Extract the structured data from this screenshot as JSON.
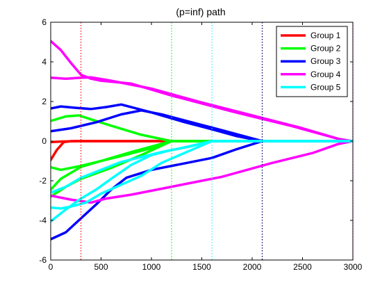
{
  "chart_data": {
    "type": "line",
    "title": "(p=inf) path",
    "xlabel": "",
    "ylabel": "",
    "xlim": [
      0,
      3000
    ],
    "ylim": [
      -6,
      6
    ],
    "xticks": [
      0,
      500,
      1000,
      1500,
      2000,
      2500,
      3000
    ],
    "yticks": [
      -6,
      -4,
      -2,
      0,
      2,
      4,
      6
    ],
    "grid": false,
    "legend_position": "top-right",
    "groups": [
      {
        "name": "Group 1",
        "color": "#ff0000",
        "breakpoint": 300
      },
      {
        "name": "Group 2",
        "color": "#00ff00",
        "breakpoint": 1200
      },
      {
        "name": "Group 3",
        "color": "#0000ff",
        "breakpoint": 2100
      },
      {
        "name": "Group 4",
        "color": "#ff00ff",
        "breakpoint": 3000
      },
      {
        "name": "Group 5",
        "color": "#00ffff",
        "breakpoint": 1600
      }
    ],
    "series": [
      {
        "group": 1,
        "points": [
          [
            0,
            -0.95
          ],
          [
            60,
            -0.45
          ],
          [
            130,
            -0.05
          ],
          [
            200,
            0.0
          ],
          [
            3000,
            0.0
          ]
        ]
      },
      {
        "group": 1,
        "points": [
          [
            0,
            -0.05
          ],
          [
            100,
            -0.02
          ],
          [
            250,
            0.0
          ],
          [
            3000,
            0.0
          ]
        ]
      },
      {
        "group": 2,
        "points": [
          [
            0,
            1.02
          ],
          [
            150,
            1.25
          ],
          [
            280,
            1.3
          ],
          [
            400,
            1.1
          ],
          [
            600,
            0.78
          ],
          [
            900,
            0.32
          ],
          [
            1200,
            0.0
          ],
          [
            3000,
            0.0
          ]
        ]
      },
      {
        "group": 2,
        "points": [
          [
            0,
            -1.32
          ],
          [
            100,
            -1.45
          ],
          [
            300,
            -1.25
          ],
          [
            700,
            -0.75
          ],
          [
            1000,
            -0.35
          ],
          [
            1200,
            0.0
          ],
          [
            3000,
            0.0
          ]
        ]
      },
      {
        "group": 2,
        "points": [
          [
            0,
            -2.45
          ],
          [
            100,
            -1.9
          ],
          [
            300,
            -1.3
          ],
          [
            500,
            -1.0
          ],
          [
            800,
            -0.55
          ],
          [
            1200,
            0.0
          ],
          [
            3000,
            0.0
          ]
        ]
      },
      {
        "group": 2,
        "points": [
          [
            0,
            -2.8
          ],
          [
            150,
            -2.3
          ],
          [
            300,
            -1.9
          ],
          [
            600,
            -1.35
          ],
          [
            900,
            -0.7
          ],
          [
            1200,
            0.0
          ],
          [
            3000,
            0.0
          ]
        ]
      },
      {
        "group": 3,
        "points": [
          [
            0,
            1.65
          ],
          [
            100,
            1.75
          ],
          [
            250,
            1.68
          ],
          [
            400,
            1.62
          ],
          [
            550,
            1.72
          ],
          [
            700,
            1.85
          ],
          [
            1000,
            1.45
          ],
          [
            1300,
            1.0
          ],
          [
            1600,
            0.6
          ],
          [
            1850,
            0.25
          ],
          [
            2100,
            0.0
          ],
          [
            3000,
            0.0
          ]
        ]
      },
      {
        "group": 3,
        "points": [
          [
            0,
            0.5
          ],
          [
            200,
            0.65
          ],
          [
            450,
            0.95
          ],
          [
            700,
            1.35
          ],
          [
            900,
            1.55
          ],
          [
            1100,
            1.35
          ],
          [
            1400,
            0.95
          ],
          [
            1700,
            0.55
          ],
          [
            2100,
            0.0
          ],
          [
            3000,
            0.0
          ]
        ]
      },
      {
        "group": 3,
        "points": [
          [
            0,
            -4.95
          ],
          [
            150,
            -4.6
          ],
          [
            300,
            -3.9
          ],
          [
            450,
            -3.2
          ],
          [
            600,
            -2.45
          ],
          [
            750,
            -1.85
          ],
          [
            1000,
            -1.45
          ],
          [
            1300,
            -1.15
          ],
          [
            1600,
            -0.85
          ],
          [
            1850,
            -0.4
          ],
          [
            2100,
            0.0
          ],
          [
            3000,
            0.0
          ]
        ]
      },
      {
        "group": 4,
        "points": [
          [
            0,
            5.05
          ],
          [
            100,
            4.6
          ],
          [
            200,
            3.95
          ],
          [
            300,
            3.35
          ],
          [
            400,
            3.15
          ],
          [
            500,
            3.05
          ],
          [
            800,
            2.9
          ],
          [
            1200,
            2.3
          ],
          [
            1800,
            1.5
          ],
          [
            2400,
            0.75
          ],
          [
            2850,
            0.12
          ],
          [
            3000,
            0.0
          ]
        ]
      },
      {
        "group": 4,
        "points": [
          [
            0,
            3.2
          ],
          [
            150,
            3.15
          ],
          [
            300,
            3.2
          ],
          [
            400,
            3.22
          ],
          [
            600,
            3.05
          ],
          [
            1000,
            2.65
          ],
          [
            1500,
            1.95
          ],
          [
            2000,
            1.3
          ],
          [
            2500,
            0.65
          ],
          [
            2900,
            0.05
          ],
          [
            3000,
            0.0
          ]
        ]
      },
      {
        "group": 4,
        "points": [
          [
            0,
            -2.75
          ],
          [
            200,
            -2.95
          ],
          [
            400,
            -3.1
          ],
          [
            550,
            -2.9
          ],
          [
            800,
            -2.7
          ],
          [
            1200,
            -2.3
          ],
          [
            1700,
            -1.8
          ],
          [
            2200,
            -1.1
          ],
          [
            2600,
            -0.6
          ],
          [
            2850,
            -0.15
          ],
          [
            3000,
            0.0
          ]
        ]
      },
      {
        "group": 5,
        "points": [
          [
            0,
            -4.05
          ],
          [
            150,
            -3.45
          ],
          [
            300,
            -2.9
          ],
          [
            450,
            -2.45
          ],
          [
            600,
            -1.9
          ],
          [
            800,
            -1.2
          ],
          [
            1000,
            -0.7
          ],
          [
            1200,
            -0.45
          ],
          [
            1400,
            -0.25
          ],
          [
            1600,
            0.0
          ],
          [
            3000,
            0.0
          ]
        ]
      },
      {
        "group": 5,
        "points": [
          [
            0,
            -3.35
          ],
          [
            100,
            -3.4
          ],
          [
            200,
            -3.3
          ],
          [
            350,
            -3.1
          ],
          [
            500,
            -2.65
          ],
          [
            700,
            -2.2
          ],
          [
            900,
            -1.75
          ],
          [
            1100,
            -1.1
          ],
          [
            1350,
            -0.55
          ],
          [
            1600,
            0.0
          ],
          [
            3000,
            0.0
          ]
        ]
      },
      {
        "group": 5,
        "points": [
          [
            0,
            -2.6
          ],
          [
            150,
            -2.3
          ],
          [
            300,
            -1.85
          ],
          [
            500,
            -1.45
          ],
          [
            700,
            -1.05
          ],
          [
            900,
            -0.8
          ],
          [
            1100,
            -0.55
          ],
          [
            1300,
            -0.35
          ],
          [
            1600,
            0.0
          ],
          [
            3000,
            0.0
          ]
        ]
      }
    ]
  }
}
